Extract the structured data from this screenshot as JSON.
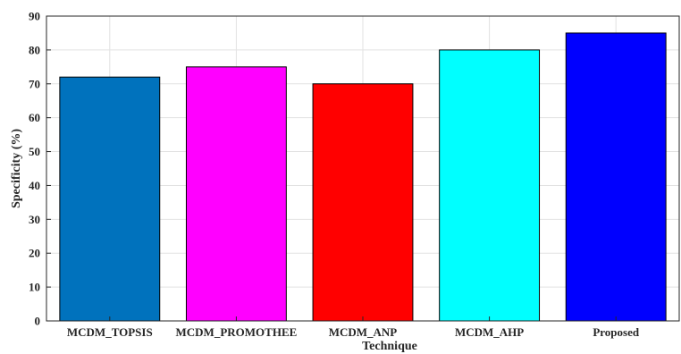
{
  "chart_data": {
    "type": "bar",
    "categories": [
      "MCDM_TOPSIS",
      "MCDM_PROMOTHEE",
      "MCDM_ANP",
      "MCDM_AHP",
      "Proposed"
    ],
    "values": [
      72,
      75,
      70,
      80,
      85
    ],
    "colors": [
      "#0072bd",
      "#ff00ff",
      "#ff0000",
      "#00ffff",
      "#0000ff"
    ],
    "xlabel": "Technique",
    "ylabel": "Specificity (%)",
    "ylim": [
      0,
      90
    ],
    "yticks": [
      0,
      10,
      20,
      30,
      40,
      50,
      60,
      70,
      80,
      90
    ],
    "grid": true
  }
}
